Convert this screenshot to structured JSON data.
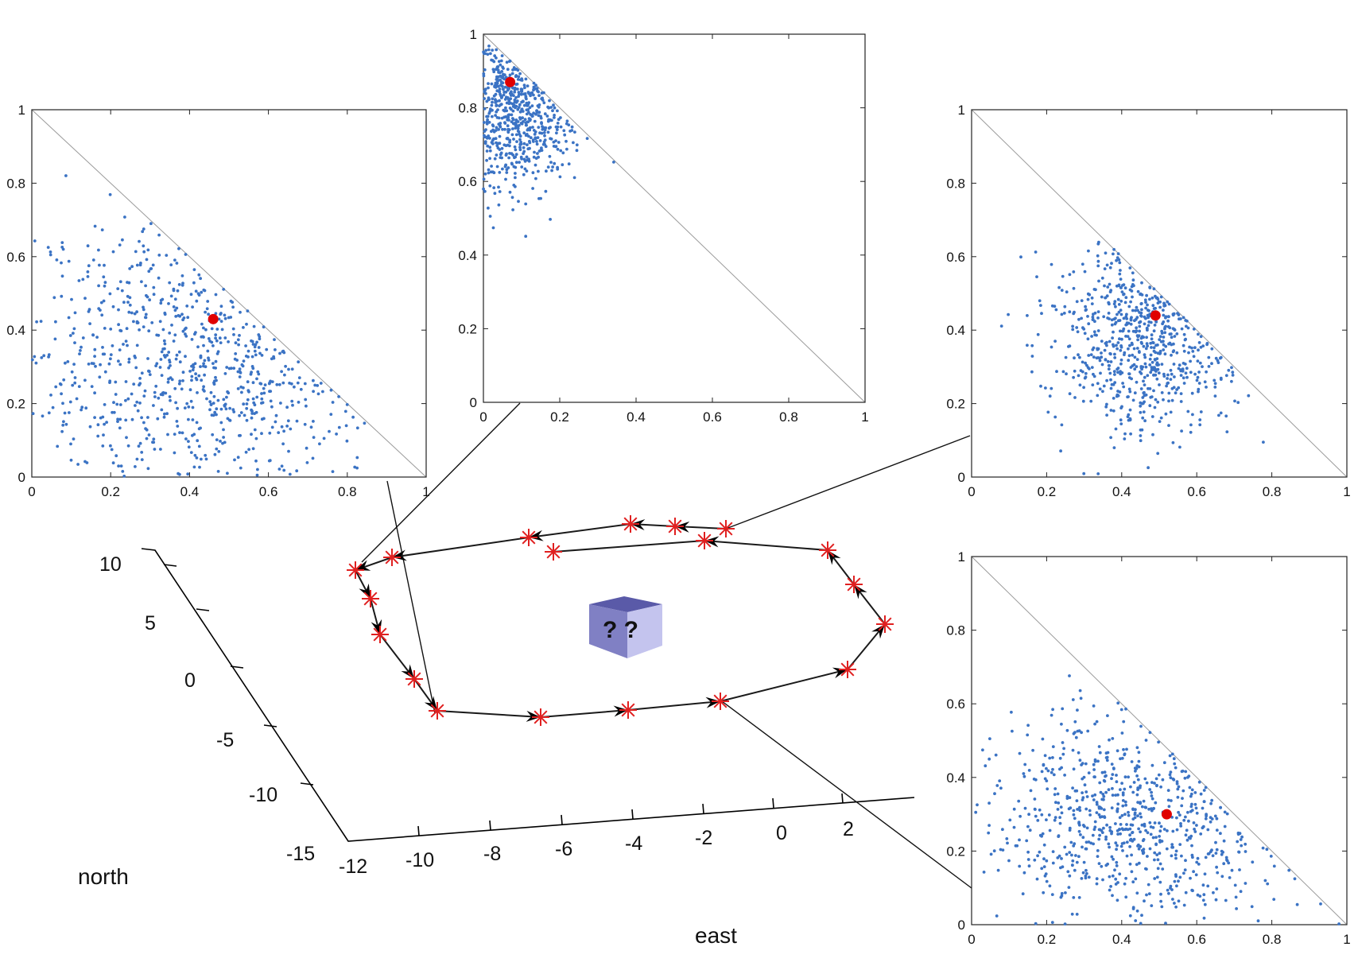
{
  "scene": {
    "axis_labels": {
      "north": "north",
      "east": "east"
    },
    "north_ticks": [
      "10",
      "5",
      "0",
      "-5",
      "-10",
      "-15"
    ],
    "east_ticks": [
      "-12",
      "-10",
      "-8",
      "-6",
      "-4",
      "-2",
      "0",
      "2"
    ],
    "unknown_box_symbol": "? ?",
    "colors": {
      "points": "#3b73c4",
      "selected": "#e00000",
      "waypoint": "#e02020"
    }
  },
  "chart_data": [
    {
      "type": "scatter",
      "name": "panel-top-left",
      "xlim": [
        0,
        1
      ],
      "ylim": [
        0,
        1
      ],
      "xticks": [
        "0",
        "0.2",
        "0.4",
        "0.6",
        "0.8",
        "1"
      ],
      "yticks": [
        "0",
        "0.2",
        "0.4",
        "0.6",
        "0.8",
        "1"
      ],
      "highlight": [
        0.46,
        0.43
      ],
      "distribution": {
        "mx": 0.42,
        "my": 0.32,
        "sx": 0.24,
        "sy": 0.2,
        "n": 750,
        "seed": 11
      }
    },
    {
      "type": "scatter",
      "name": "panel-top-middle",
      "xlim": [
        0,
        1
      ],
      "ylim": [
        0,
        1
      ],
      "xticks": [
        "0",
        "0.2",
        "0.4",
        "0.6",
        "0.8",
        "1"
      ],
      "yticks": [
        "0",
        "0.2",
        "0.4",
        "0.6",
        "0.8",
        "1"
      ],
      "highlight": [
        0.07,
        0.87
      ],
      "distribution": {
        "mx": 0.07,
        "my": 0.8,
        "sx": 0.09,
        "sy": 0.11,
        "n": 600,
        "seed": 23
      }
    },
    {
      "type": "scatter",
      "name": "panel-top-right",
      "xlim": [
        0,
        1
      ],
      "ylim": [
        0,
        1
      ],
      "xticks": [
        "0",
        "0.2",
        "0.4",
        "0.6",
        "0.8",
        "1"
      ],
      "yticks": [
        "0",
        "0.2",
        "0.4",
        "0.6",
        "0.8",
        "1"
      ],
      "highlight": [
        0.49,
        0.44
      ],
      "distribution": {
        "mx": 0.47,
        "my": 0.39,
        "sx": 0.12,
        "sy": 0.13,
        "n": 700,
        "seed": 37
      }
    },
    {
      "type": "scatter",
      "name": "panel-bottom-right",
      "xlim": [
        0,
        1
      ],
      "ylim": [
        0,
        1
      ],
      "xticks": [
        "0",
        "0.2",
        "0.4",
        "0.6",
        "0.8",
        "1"
      ],
      "yticks": [
        "0",
        "0.2",
        "0.4",
        "0.6",
        "0.8",
        "1"
      ],
      "highlight": [
        0.52,
        0.3
      ],
      "distribution": {
        "mx": 0.45,
        "my": 0.28,
        "sx": 0.21,
        "sy": 0.16,
        "n": 750,
        "seed": 53
      }
    }
  ]
}
